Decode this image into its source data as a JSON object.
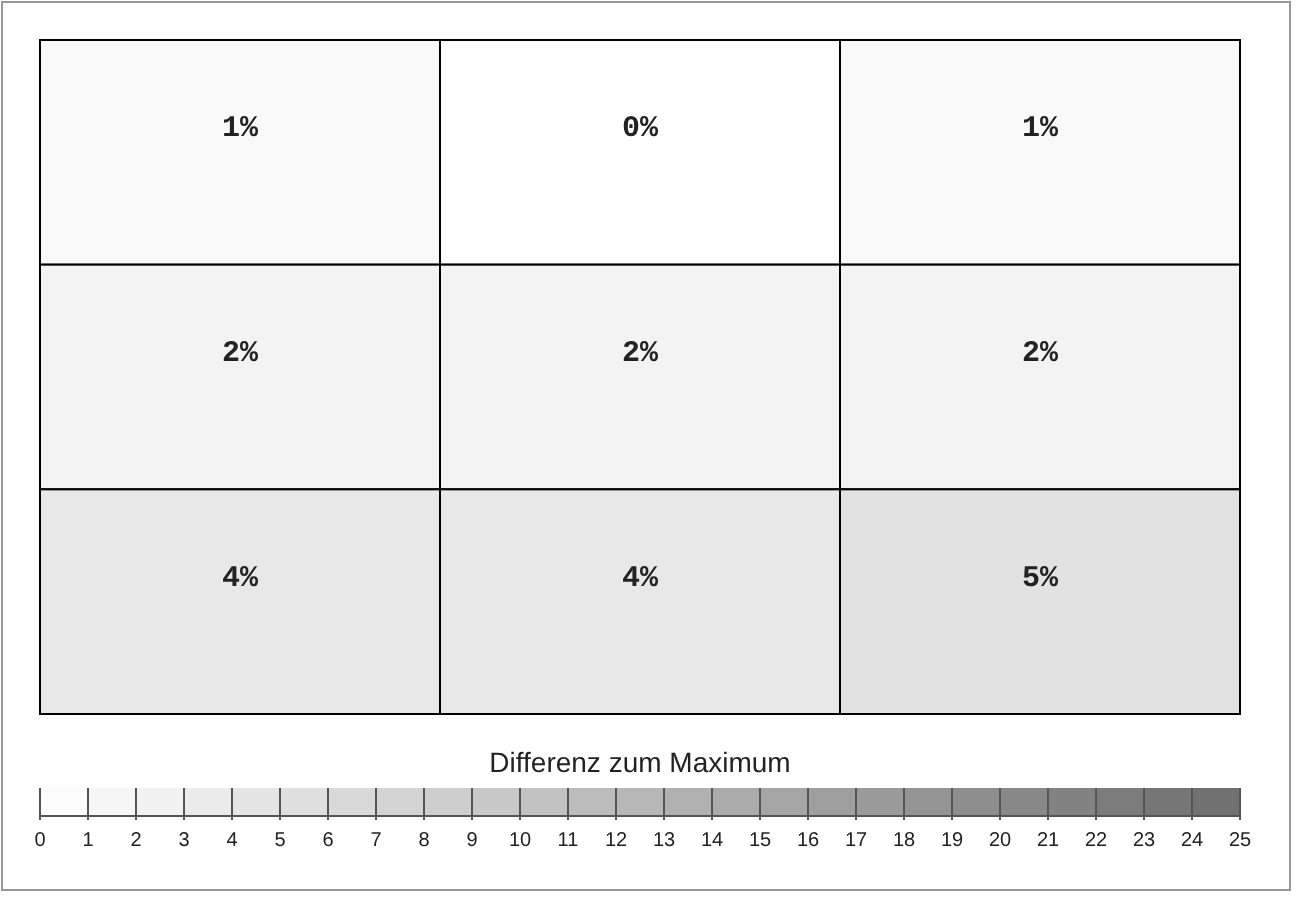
{
  "chart_data": {
    "type": "heatmap",
    "categories": [
      null,
      null,
      null
    ],
    "y_categories": [
      null,
      null,
      null
    ],
    "cells": [
      [
        1,
        0,
        1
      ],
      [
        2,
        2,
        2
      ],
      [
        4,
        4,
        5
      ]
    ],
    "cell_labels": [
      [
        "1%",
        "0%",
        "1%"
      ],
      [
        "2%",
        "2%",
        "2%"
      ],
      [
        "4%",
        "4%",
        "5%"
      ]
    ],
    "clabel": "Differenz zum Maximum",
    "clim": [
      0,
      25
    ],
    "cticks": [
      0,
      1,
      2,
      3,
      4,
      5,
      6,
      7,
      8,
      9,
      10,
      11,
      12,
      13,
      14,
      15,
      16,
      17,
      18,
      19,
      20,
      21,
      22,
      23,
      24,
      25
    ]
  }
}
